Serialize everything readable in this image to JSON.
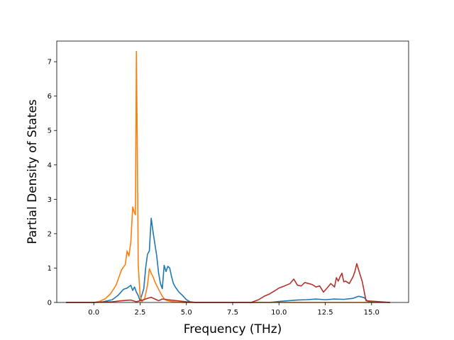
{
  "chart_data": {
    "type": "line",
    "title": "",
    "xlabel": "Frequency (THz)",
    "ylabel": "Partial Density of States",
    "xlim": [
      -2.0,
      17.0
    ],
    "ylim": [
      0,
      7.6
    ],
    "xticks": [
      0.0,
      2.5,
      5.0,
      7.5,
      10.0,
      12.5,
      15.0
    ],
    "xtick_labels": [
      "0.0",
      "2.5",
      "5.0",
      "7.5",
      "10.0",
      "12.5",
      "15.0"
    ],
    "yticks": [
      0,
      1,
      2,
      3,
      4,
      5,
      6,
      7
    ],
    "ytick_labels": [
      "0",
      "1",
      "2",
      "3",
      "4",
      "5",
      "6",
      "7"
    ],
    "grid": false,
    "legend": "none",
    "series": [
      {
        "color": "#1f77b4",
        "x": [
          -1.5,
          0.0,
          0.5,
          1.0,
          1.3,
          1.6,
          1.8,
          2.0,
          2.1,
          2.2,
          2.3,
          2.4,
          2.5,
          2.7,
          2.8,
          2.9,
          3.0,
          3.1,
          3.2,
          3.3,
          3.4,
          3.5,
          3.6,
          3.7,
          3.8,
          3.9,
          4.0,
          4.1,
          4.2,
          4.3,
          4.4,
          4.6,
          4.8,
          5.0,
          5.2,
          5.5,
          8.5,
          9.5,
          10.0,
          10.5,
          11.0,
          11.5,
          12.0,
          12.5,
          13.0,
          13.5,
          14.0,
          14.3,
          14.6,
          14.8,
          16.0
        ],
        "y": [
          0,
          0,
          0.02,
          0.08,
          0.2,
          0.38,
          0.42,
          0.5,
          0.35,
          0.45,
          0.3,
          0.2,
          0.05,
          0.4,
          1.0,
          1.4,
          1.5,
          2.45,
          2.05,
          1.7,
          1.35,
          0.85,
          0.55,
          0.4,
          1.08,
          0.9,
          1.05,
          1.0,
          0.75,
          0.55,
          0.45,
          0.3,
          0.2,
          0.08,
          0.02,
          0,
          0,
          0,
          0.03,
          0.05,
          0.07,
          0.08,
          0.1,
          0.08,
          0.1,
          0.09,
          0.12,
          0.18,
          0.14,
          0.03,
          0
        ]
      },
      {
        "color": "#ff7f0e",
        "x": [
          -1.5,
          0.0,
          0.3,
          0.6,
          0.9,
          1.2,
          1.5,
          1.7,
          1.8,
          1.9,
          2.0,
          2.1,
          2.2,
          2.25,
          2.3,
          2.35,
          2.4,
          2.5,
          2.6,
          2.75,
          2.9,
          3.0,
          3.1,
          3.2,
          3.3,
          3.5,
          3.7,
          3.85,
          4.0,
          4.2,
          4.5,
          5.0,
          8.5,
          16.0
        ],
        "y": [
          0,
          0,
          0.03,
          0.1,
          0.25,
          0.5,
          0.95,
          1.1,
          1.5,
          1.35,
          1.75,
          2.78,
          2.6,
          2.55,
          7.3,
          4.5,
          1.1,
          0.2,
          0.02,
          0.12,
          0.5,
          0.98,
          0.85,
          0.75,
          0.6,
          0.38,
          0.18,
          0.08,
          0.05,
          0.03,
          0.01,
          0,
          0,
          0
        ]
      },
      {
        "color": "#b5312a",
        "x": [
          -1.5,
          0.0,
          1.0,
          1.5,
          2.0,
          2.3,
          2.5,
          2.7,
          2.9,
          3.1,
          3.3,
          3.5,
          3.7,
          4.0,
          4.5,
          5.0,
          5.5,
          8.5,
          8.9,
          9.2,
          9.5,
          9.8,
          10.0,
          10.3,
          10.6,
          10.8,
          11.0,
          11.2,
          11.4,
          11.6,
          11.8,
          12.0,
          12.2,
          12.4,
          12.6,
          12.8,
          13.0,
          13.1,
          13.2,
          13.3,
          13.4,
          13.5,
          13.6,
          13.8,
          14.0,
          14.1,
          14.2,
          14.3,
          14.5,
          14.7,
          16.0
        ],
        "y": [
          0,
          0,
          0.02,
          0.05,
          0.07,
          0.02,
          0.05,
          0.08,
          0.12,
          0.15,
          0.1,
          0.05,
          0.1,
          0.08,
          0.05,
          0.02,
          0,
          0,
          0.08,
          0.18,
          0.25,
          0.35,
          0.42,
          0.48,
          0.55,
          0.68,
          0.5,
          0.48,
          0.58,
          0.55,
          0.52,
          0.45,
          0.48,
          0.3,
          0.42,
          0.55,
          0.45,
          0.72,
          0.62,
          0.75,
          0.85,
          0.6,
          0.62,
          0.55,
          0.75,
          0.9,
          1.13,
          0.95,
          0.6,
          0.05,
          0
        ]
      }
    ]
  }
}
